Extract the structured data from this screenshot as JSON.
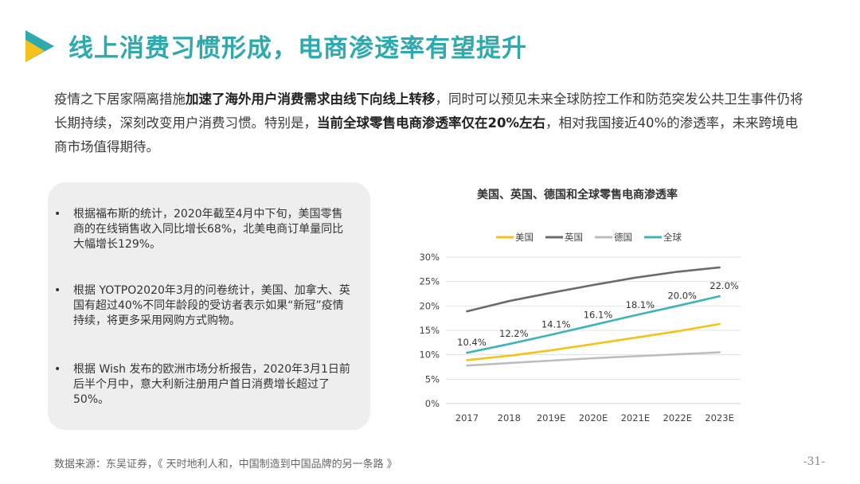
{
  "header": {
    "title": "线上消费习惯形成，电商渗透率有望提升"
  },
  "intro": {
    "p1": "疫情之下居家隔离措施",
    "p1_bold": "加速了海外用户消费需求由线下向线上转移",
    "p2": "，同时可以预见未来全球防控工作和防范突发公共卫生事件仍将长期持续，深刻改变用户消费习惯。特别是，",
    "p2_bold": "当前全球零售电商渗透率仅在20%左右",
    "p3": "，相对我国接近40%的渗透率，未来跨境电商市场值得期待。"
  },
  "bullets": {
    "marker": "•",
    "items": [
      "根据福布斯的统计，2020年截至4月中下旬，美国零售商的在线销售收入同比增长68%，北美电商订单量同比大幅增长129%。",
      "根据 YOTPO2020年3月的问卷统计，美国、加拿大、英国有超过40%不同年龄段的受访者表示如果“新冠”疫情持续，将更多采用网购方式购物。",
      "根据 Wish 发布的欧洲市场分析报告，2020年3月1日前后半个月中，意大利新注册用户首日消费增长超过了 50%。"
    ]
  },
  "chart_data": {
    "type": "line",
    "title": "美国、英国、德国和全球零售电商渗透率",
    "categories": [
      "2017",
      "2018",
      "2019E",
      "2020E",
      "2021E",
      "2022E",
      "2023E"
    ],
    "ylim": [
      0,
      30
    ],
    "yticks": [
      "0%",
      "5%",
      "10%",
      "15%",
      "20%",
      "25%",
      "30%"
    ],
    "grid": true,
    "legend_position": "top",
    "series": [
      {
        "name": "美国",
        "color": "#f5c21b",
        "values": [
          8.9,
          9.8,
          10.9,
          12.2,
          13.5,
          14.8,
          16.3
        ]
      },
      {
        "name": "英国",
        "color": "#6b6b6b",
        "values": [
          18.9,
          21.0,
          22.7,
          24.3,
          25.8,
          27.0,
          27.9
        ]
      },
      {
        "name": "德国",
        "color": "#bdbdbd",
        "values": [
          7.8,
          8.3,
          8.8,
          9.3,
          9.7,
          10.1,
          10.5
        ]
      },
      {
        "name": "全球",
        "color": "#3fb4b8",
        "values": [
          10.4,
          12.2,
          14.1,
          16.1,
          18.1,
          20.0,
          22.0
        ],
        "labels": [
          "10.4%",
          "12.2%",
          "14.1%",
          "16.1%",
          "18.1%",
          "20.0%",
          "22.0%"
        ]
      }
    ]
  },
  "footer": {
    "source": "数据来源：东吴证券，《 天时地利人和，中国制造到中国品牌的另一条路 》",
    "page": "-31-"
  }
}
